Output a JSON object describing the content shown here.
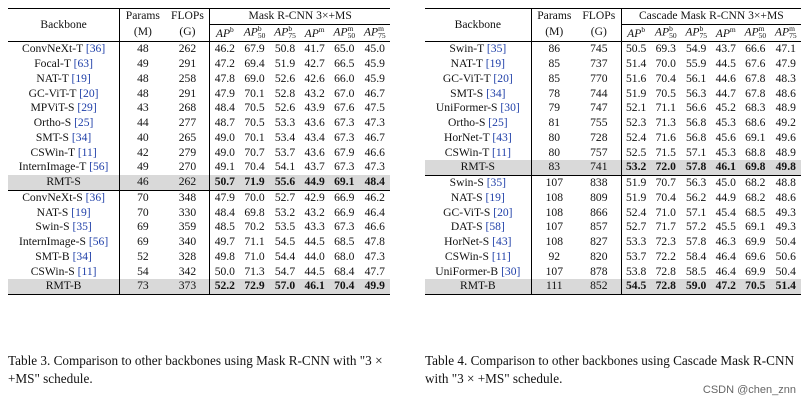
{
  "table3": {
    "headers": {
      "backbone": "Backbone",
      "params": "Params",
      "params_unit": "(M)",
      "flops": "FLOPs",
      "flops_unit": "(G)",
      "group": "Mask R-CNN 3×+MS",
      "metrics": [
        "AP^b",
        "AP^b_50",
        "AP^b_75",
        "AP^m",
        "AP^m_50",
        "AP^m_75"
      ]
    },
    "sections": [
      {
        "rows": [
          {
            "name": "ConvNeXt-T",
            "cite": "[36]",
            "values": [
              "48",
              "262",
              "46.2",
              "67.9",
              "50.8",
              "41.7",
              "65.0",
              "45.0"
            ]
          },
          {
            "name": "Focal-T",
            "cite": "[63]",
            "values": [
              "49",
              "291",
              "47.2",
              "69.4",
              "51.9",
              "42.7",
              "66.5",
              "45.9"
            ]
          },
          {
            "name": "NAT-T",
            "cite": "[19]",
            "values": [
              "48",
              "258",
              "47.8",
              "69.0",
              "52.6",
              "42.6",
              "66.0",
              "45.9"
            ]
          },
          {
            "name": "GC-ViT-T",
            "cite": "[20]",
            "values": [
              "48",
              "291",
              "47.9",
              "70.1",
              "52.8",
              "43.2",
              "67.0",
              "46.7"
            ]
          },
          {
            "name": "MPViT-S",
            "cite": "[29]",
            "values": [
              "43",
              "268",
              "48.4",
              "70.5",
              "52.6",
              "43.9",
              "67.6",
              "47.5"
            ]
          },
          {
            "name": "Ortho-S",
            "cite": "[25]",
            "values": [
              "44",
              "277",
              "48.7",
              "70.5",
              "53.3",
              "43.6",
              "67.3",
              "47.3"
            ]
          },
          {
            "name": "SMT-S",
            "cite": "[34]",
            "values": [
              "40",
              "265",
              "49.0",
              "70.1",
              "53.4",
              "43.4",
              "67.3",
              "46.7"
            ]
          },
          {
            "name": "CSWin-T",
            "cite": "[11]",
            "values": [
              "42",
              "279",
              "49.0",
              "70.7",
              "53.7",
              "43.6",
              "67.9",
              "46.6"
            ]
          },
          {
            "name": "InternImage-T",
            "cite": "[56]",
            "values": [
              "49",
              "270",
              "49.1",
              "70.4",
              "54.1",
              "43.7",
              "67.3",
              "47.3"
            ]
          }
        ],
        "highlight": {
          "name": "RMT-S",
          "values": [
            "46",
            "262",
            "50.7",
            "71.9",
            "55.6",
            "44.9",
            "69.1",
            "48.4"
          ]
        }
      },
      {
        "rows": [
          {
            "name": "ConvNeXt-S",
            "cite": "[36]",
            "values": [
              "70",
              "348",
              "47.9",
              "70.0",
              "52.7",
              "42.9",
              "66.9",
              "46.2"
            ]
          },
          {
            "name": "NAT-S",
            "cite": "[19]",
            "values": [
              "70",
              "330",
              "48.4",
              "69.8",
              "53.2",
              "43.2",
              "66.9",
              "46.4"
            ]
          },
          {
            "name": "Swin-S",
            "cite": "[35]",
            "values": [
              "69",
              "359",
              "48.5",
              "70.2",
              "53.5",
              "43.3",
              "67.3",
              "46.6"
            ]
          },
          {
            "name": "InternImage-S",
            "cite": "[56]",
            "values": [
              "69",
              "340",
              "49.7",
              "71.1",
              "54.5",
              "44.5",
              "68.5",
              "47.8"
            ]
          },
          {
            "name": "SMT-B",
            "cite": "[34]",
            "values": [
              "52",
              "328",
              "49.8",
              "71.0",
              "54.4",
              "44.0",
              "68.0",
              "47.3"
            ]
          },
          {
            "name": "CSWin-S",
            "cite": "[11]",
            "values": [
              "54",
              "342",
              "50.0",
              "71.3",
              "54.7",
              "44.5",
              "68.4",
              "47.7"
            ]
          }
        ],
        "highlight": {
          "name": "RMT-B",
          "values": [
            "73",
            "373",
            "52.2",
            "72.9",
            "57.0",
            "46.1",
            "70.4",
            "49.9"
          ]
        }
      }
    ],
    "caption": "Table 3. Comparison to other backbones using Mask R-CNN with \"3 × +MS\" schedule."
  },
  "table4": {
    "headers": {
      "backbone": "Backbone",
      "params": "Params",
      "params_unit": "(M)",
      "flops": "FLOPs",
      "flops_unit": "(G)",
      "group": "Cascade Mask R-CNN 3×+MS",
      "metrics": [
        "AP^b",
        "AP^b_50",
        "AP^b_75",
        "AP^m",
        "AP^m_50",
        "AP^m_75"
      ]
    },
    "sections": [
      {
        "rows": [
          {
            "name": "Swin-T",
            "cite": "[35]",
            "values": [
              "86",
              "745",
              "50.5",
              "69.3",
              "54.9",
              "43.7",
              "66.6",
              "47.1"
            ]
          },
          {
            "name": "NAT-T",
            "cite": "[19]",
            "values": [
              "85",
              "737",
              "51.4",
              "70.0",
              "55.9",
              "44.5",
              "67.6",
              "47.9"
            ]
          },
          {
            "name": "GC-ViT-T",
            "cite": "[20]",
            "values": [
              "85",
              "770",
              "51.6",
              "70.4",
              "56.1",
              "44.6",
              "67.8",
              "48.3"
            ]
          },
          {
            "name": "SMT-S",
            "cite": "[34]",
            "values": [
              "78",
              "744",
              "51.9",
              "70.5",
              "56.3",
              "44.7",
              "67.8",
              "48.6"
            ]
          },
          {
            "name": "UniFormer-S",
            "cite": "[30]",
            "values": [
              "79",
              "747",
              "52.1",
              "71.1",
              "56.6",
              "45.2",
              "68.3",
              "48.9"
            ]
          },
          {
            "name": "Ortho-S",
            "cite": "[25]",
            "values": [
              "81",
              "755",
              "52.3",
              "71.3",
              "56.8",
              "45.3",
              "68.6",
              "49.2"
            ]
          },
          {
            "name": "HorNet-T",
            "cite": "[43]",
            "values": [
              "80",
              "728",
              "52.4",
              "71.6",
              "56.8",
              "45.6",
              "69.1",
              "49.6"
            ]
          },
          {
            "name": "CSWin-T",
            "cite": "[11]",
            "values": [
              "80",
              "757",
              "52.5",
              "71.5",
              "57.1",
              "45.3",
              "68.8",
              "48.9"
            ]
          }
        ],
        "highlight": {
          "name": "RMT-S",
          "values": [
            "83",
            "741",
            "53.2",
            "72.0",
            "57.8",
            "46.1",
            "69.8",
            "49.8"
          ]
        }
      },
      {
        "rows": [
          {
            "name": "Swin-S",
            "cite": "[35]",
            "values": [
              "107",
              "838",
              "51.9",
              "70.7",
              "56.3",
              "45.0",
              "68.2",
              "48.8"
            ]
          },
          {
            "name": "NAT-S",
            "cite": "[19]",
            "values": [
              "108",
              "809",
              "51.9",
              "70.4",
              "56.2",
              "44.9",
              "68.2",
              "48.6"
            ]
          },
          {
            "name": "GC-ViT-S",
            "cite": "[20]",
            "values": [
              "108",
              "866",
              "52.4",
              "71.0",
              "57.1",
              "45.4",
              "68.5",
              "49.3"
            ]
          },
          {
            "name": "DAT-S",
            "cite": "[58]",
            "values": [
              "107",
              "857",
              "52.7",
              "71.7",
              "57.2",
              "45.5",
              "69.1",
              "49.3"
            ]
          },
          {
            "name": "HorNet-S",
            "cite": "[43]",
            "values": [
              "108",
              "827",
              "53.3",
              "72.3",
              "57.8",
              "46.3",
              "69.9",
              "50.4"
            ]
          },
          {
            "name": "CSWin-S",
            "cite": "[11]",
            "values": [
              "92",
              "820",
              "53.7",
              "72.2",
              "58.4",
              "46.4",
              "69.6",
              "50.6"
            ]
          },
          {
            "name": "UniFormer-B",
            "cite": "[30]",
            "values": [
              "107",
              "878",
              "53.8",
              "72.8",
              "58.5",
              "46.4",
              "69.9",
              "50.4"
            ]
          }
        ],
        "highlight": {
          "name": "RMT-B",
          "values": [
            "111",
            "852",
            "54.5",
            "72.8",
            "59.0",
            "47.2",
            "70.5",
            "51.4"
          ]
        }
      }
    ],
    "caption": "Table 4. Comparison to other backbones using Cascade Mask R-CNN with \"3 × +MS\" schedule."
  },
  "watermark": "CSDN @chen_znn"
}
